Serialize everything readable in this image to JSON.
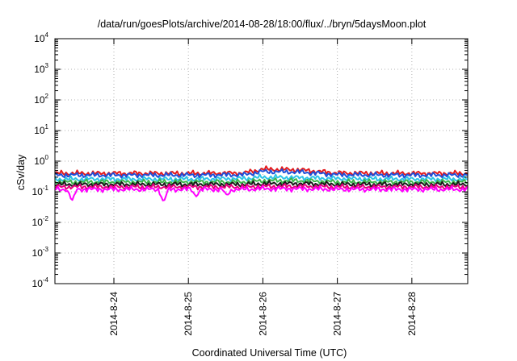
{
  "chart_data": {
    "type": "line",
    "title": "/data/run/goesPlots/archive/2014-08-28/18:00/flux/../bryn/5daysMoon.plot",
    "xlabel": "Coordinated Universal Time (UTC)",
    "ylabel": "cSv/day",
    "y_scale": "log",
    "ylim": [
      0.0001,
      10000
    ],
    "y_ticks": [
      {
        "base": "10",
        "exp": "-4",
        "value": 0.0001
      },
      {
        "base": "10",
        "exp": "-3",
        "value": 0.001
      },
      {
        "base": "10",
        "exp": "-2",
        "value": 0.01
      },
      {
        "base": "10",
        "exp": "-1",
        "value": 0.1
      },
      {
        "base": "10",
        "exp": "0",
        "value": 1
      },
      {
        "base": "10",
        "exp": "1",
        "value": 10
      },
      {
        "base": "10",
        "exp": "2",
        "value": 100
      },
      {
        "base": "10",
        "exp": "3",
        "value": 1000
      },
      {
        "base": "10",
        "exp": "4",
        "value": 10000
      }
    ],
    "xlim": [
      "2014-08-23 05:00",
      "2014-08-28 18:00"
    ],
    "x_ticks": [
      "2014-8-24",
      "2014-8-25",
      "2014-8-26",
      "2014-8-27",
      "2014-8-28"
    ],
    "x_tick_values": [
      "2014-08-24 00:00",
      "2014-08-25 00:00",
      "2014-08-26 00:00",
      "2014-08-27 00:00",
      "2014-08-28 00:00"
    ],
    "grid": true,
    "legend": "none",
    "series": [
      {
        "color": "#e41a1c",
        "x": [
          "2014-08-23 05:00",
          "2014-08-24 00:00",
          "2014-08-25 00:00",
          "2014-08-25 18:00",
          "2014-08-26 00:00",
          "2014-08-26 12:00",
          "2014-08-26 18:00",
          "2014-08-27 00:00",
          "2014-08-28 00:00",
          "2014-08-28 18:00"
        ],
        "y": [
          0.4,
          0.4,
          0.4,
          0.41,
          0.55,
          0.52,
          0.46,
          0.41,
          0.4,
          0.4
        ]
      },
      {
        "color": "#1f4fd8",
        "x": [
          "2014-08-23 05:00",
          "2014-08-24 00:00",
          "2014-08-25 00:00",
          "2014-08-25 18:00",
          "2014-08-26 00:00",
          "2014-08-26 12:00",
          "2014-08-26 18:00",
          "2014-08-27 00:00",
          "2014-08-28 00:00",
          "2014-08-28 18:00"
        ],
        "y": [
          0.35,
          0.35,
          0.35,
          0.36,
          0.46,
          0.44,
          0.4,
          0.36,
          0.35,
          0.35
        ]
      },
      {
        "color": "#2ec4e6",
        "x": [
          "2014-08-23 05:00",
          "2014-08-24 00:00",
          "2014-08-25 00:00",
          "2014-08-25 18:00",
          "2014-08-26 00:00",
          "2014-08-26 12:00",
          "2014-08-26 18:00",
          "2014-08-27 00:00",
          "2014-08-28 00:00",
          "2014-08-28 18:00"
        ],
        "y": [
          0.26,
          0.26,
          0.26,
          0.27,
          0.3,
          0.29,
          0.28,
          0.27,
          0.26,
          0.26
        ]
      },
      {
        "color": "#3cb44b",
        "x": [
          "2014-08-23 05:00",
          "2014-08-24 00:00",
          "2014-08-25 00:00",
          "2014-08-25 18:00",
          "2014-08-26 00:00",
          "2014-08-26 12:00",
          "2014-08-26 18:00",
          "2014-08-27 00:00",
          "2014-08-28 00:00",
          "2014-08-28 18:00"
        ],
        "y": [
          0.21,
          0.21,
          0.21,
          0.21,
          0.23,
          0.23,
          0.22,
          0.21,
          0.21,
          0.21
        ]
      },
      {
        "color": "#1a1a1a",
        "x": [
          "2014-08-23 05:00",
          "2014-08-24 00:00",
          "2014-08-25 00:00",
          "2014-08-25 18:00",
          "2014-08-26 00:00",
          "2014-08-26 12:00",
          "2014-08-26 18:00",
          "2014-08-27 00:00",
          "2014-08-28 00:00",
          "2014-08-28 18:00"
        ],
        "y": [
          0.175,
          0.175,
          0.175,
          0.175,
          0.185,
          0.185,
          0.18,
          0.175,
          0.175,
          0.175
        ]
      },
      {
        "color": "#e6007e",
        "x": [
          "2014-08-23 05:00",
          "2014-08-24 00:00",
          "2014-08-25 00:00",
          "2014-08-25 18:00",
          "2014-08-26 00:00",
          "2014-08-26 12:00",
          "2014-08-26 18:00",
          "2014-08-27 00:00",
          "2014-08-28 00:00",
          "2014-08-28 18:00"
        ],
        "y": [
          0.145,
          0.145,
          0.145,
          0.145,
          0.15,
          0.15,
          0.148,
          0.145,
          0.145,
          0.145
        ]
      },
      {
        "color": "#ff00ff",
        "x": [
          "2014-08-23 05:00",
          "2014-08-24 00:00",
          "2014-08-25 00:00",
          "2014-08-25 18:00",
          "2014-08-26 00:00",
          "2014-08-26 12:00",
          "2014-08-26 18:00",
          "2014-08-27 00:00",
          "2014-08-28 00:00",
          "2014-08-28 18:00"
        ],
        "y": [
          0.12,
          0.12,
          0.12,
          0.12,
          0.125,
          0.125,
          0.122,
          0.12,
          0.12,
          0.12
        ]
      }
    ],
    "dips": [
      {
        "series_index": 6,
        "x": "2014-08-23 10:30",
        "y": 0.05
      },
      {
        "series_index": 6,
        "x": "2014-08-24 16:00",
        "y": 0.045
      },
      {
        "series_index": 6,
        "x": "2014-08-25 02:30",
        "y": 0.07
      },
      {
        "series_index": 6,
        "x": "2014-08-25 12:30",
        "y": 0.075
      }
    ]
  }
}
